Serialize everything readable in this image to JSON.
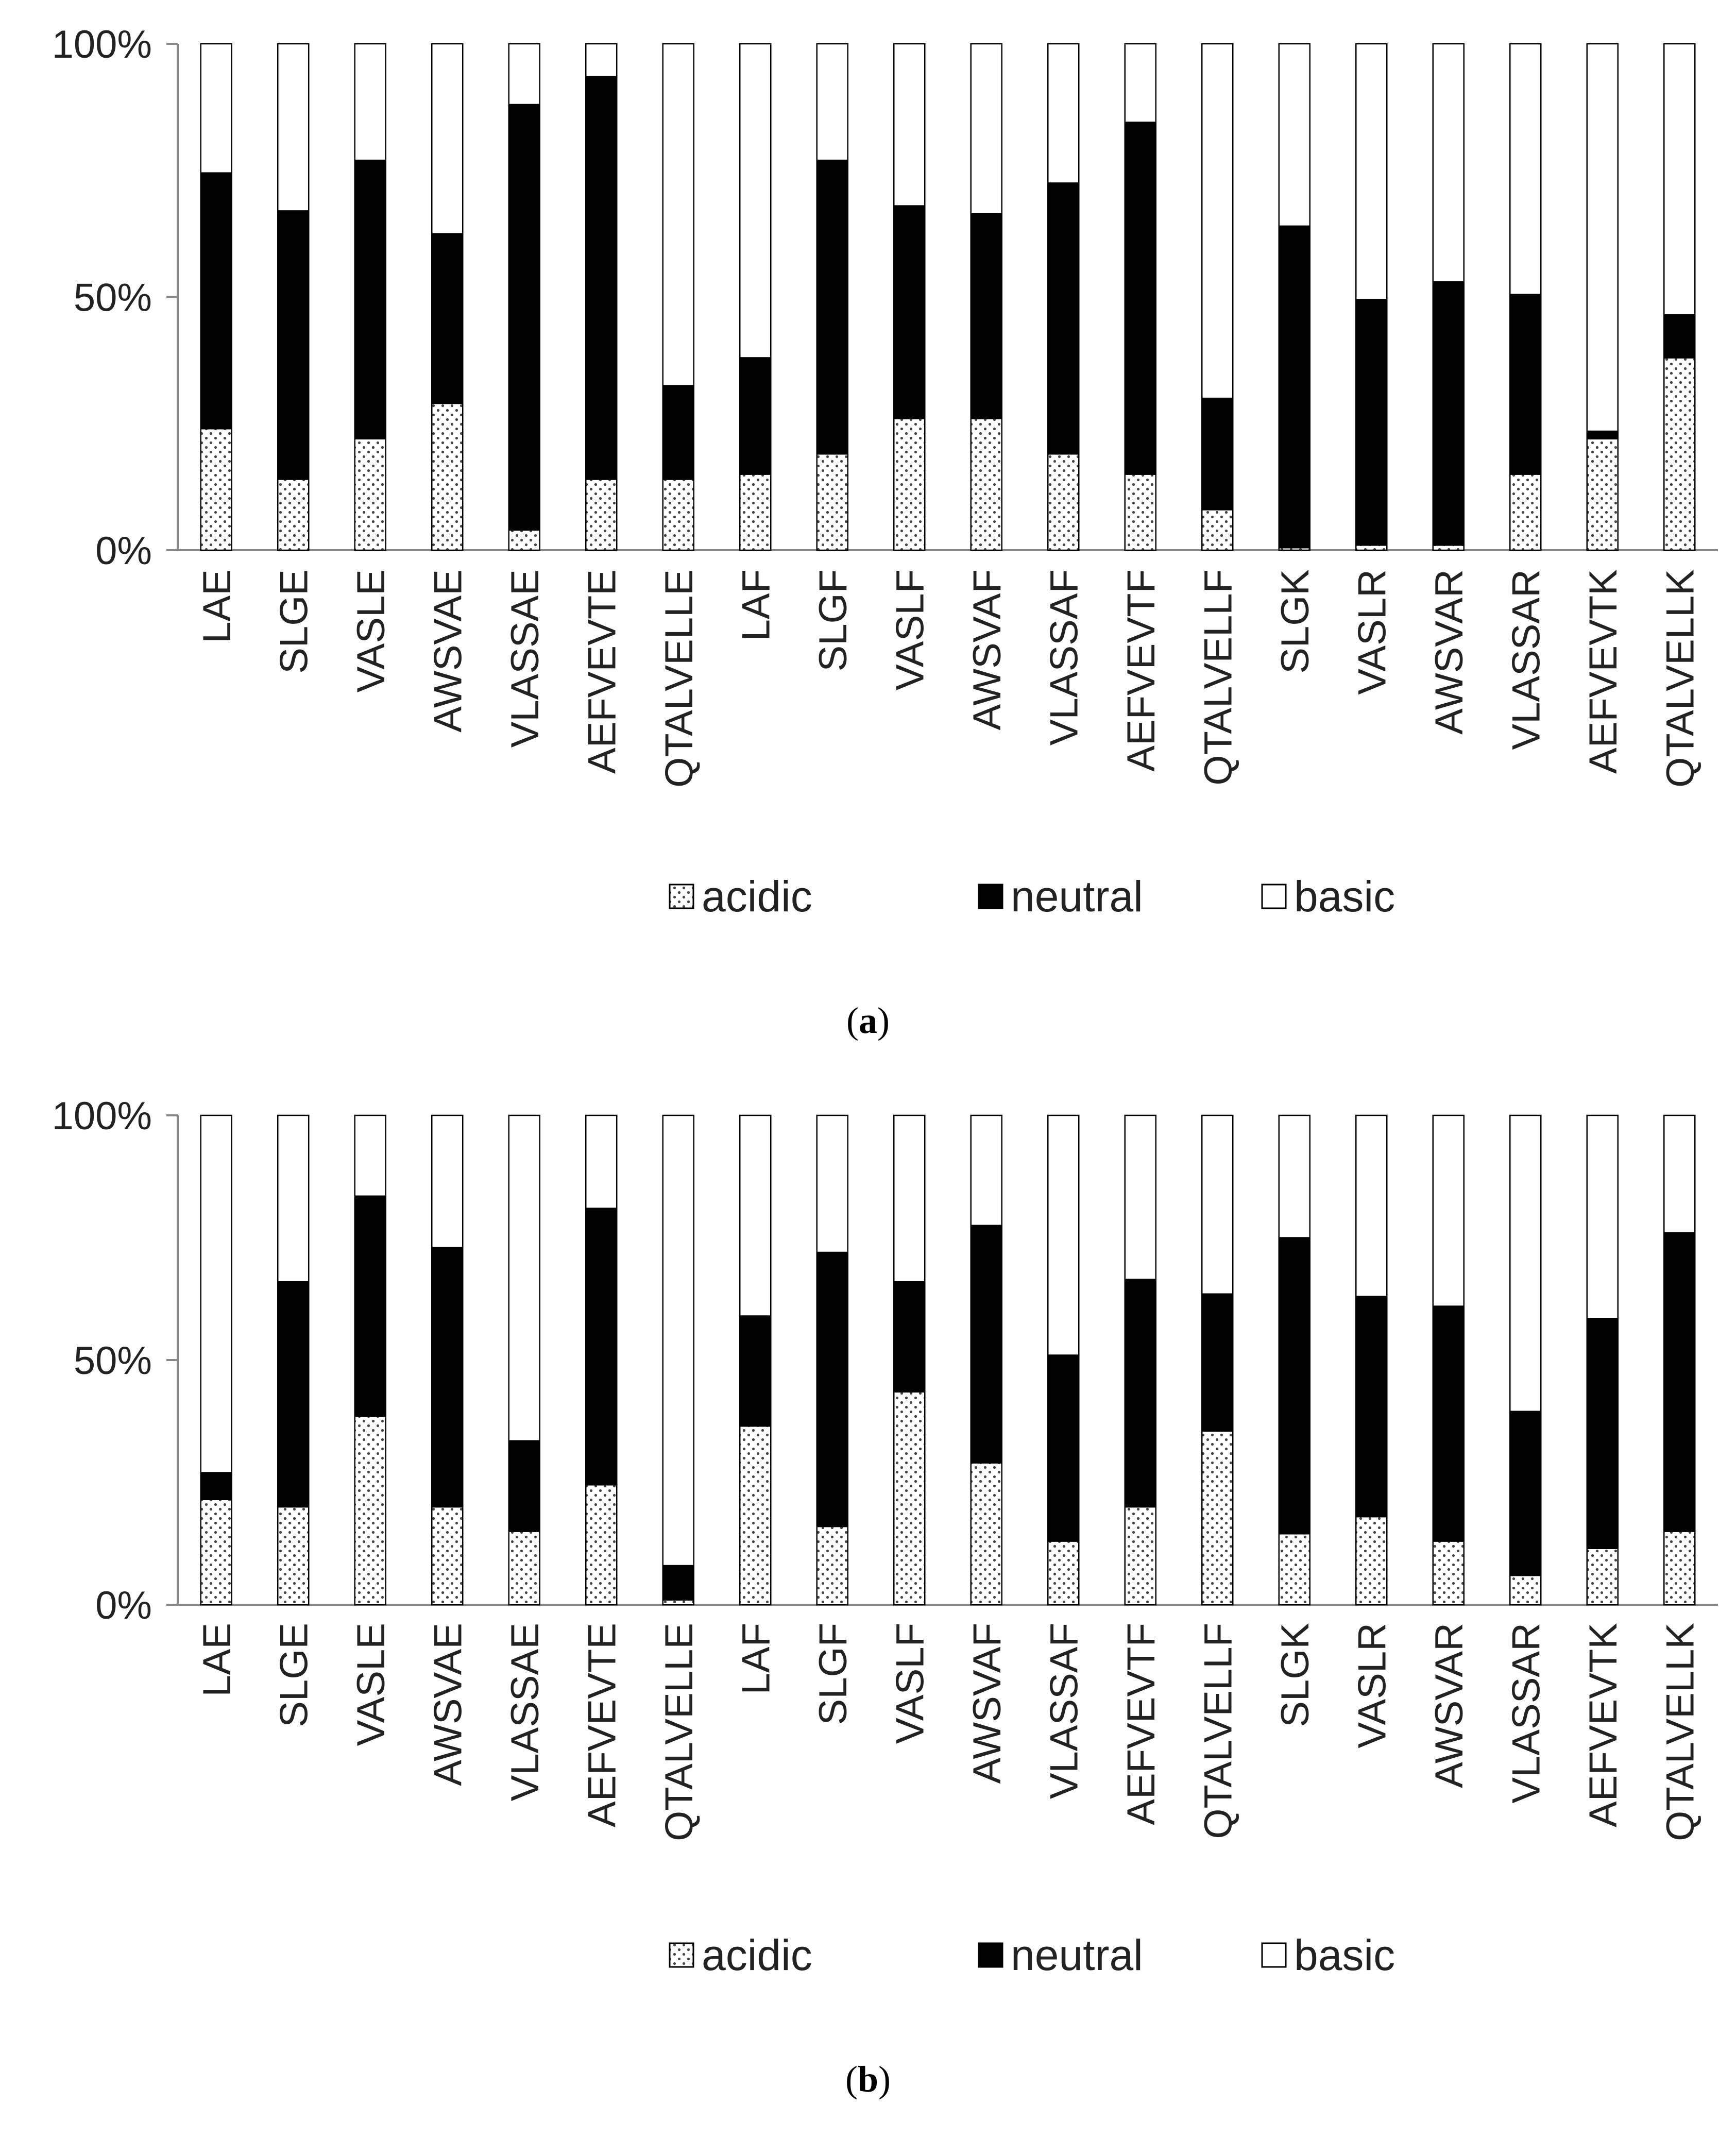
{
  "chart_data": [
    {
      "type": "bar",
      "stacked": true,
      "caption": "(a)",
      "categories": [
        "LAE",
        "SLGE",
        "VASLE",
        "AWSVAE",
        "VLASSAE",
        "AEFVEVTE",
        "QTALVELLE",
        "LAF",
        "SLGF",
        "VASLF",
        "AWSVAF",
        "VLASSAF",
        "AEFVEVTF",
        "QTALVELLF",
        "SLGK",
        "VASLR",
        "AWSVAR",
        "VLASSAR",
        "AEFVEVTK",
        "QTALVELLK"
      ],
      "series": [
        {
          "name": "acidic",
          "values": [
            24,
            14,
            22,
            29,
            4,
            14,
            14,
            15,
            19,
            26,
            26,
            19,
            15,
            8,
            0.5,
            1,
            1,
            15,
            22,
            38
          ]
        },
        {
          "name": "neutral",
          "values": [
            50.5,
            53,
            55,
            33.5,
            84,
            79.5,
            18.5,
            23,
            58,
            42,
            40.5,
            53.5,
            69.5,
            22,
            63.5,
            48.5,
            52,
            35.5,
            1.5,
            8.5
          ]
        },
        {
          "name": "basic",
          "values": [
            25.5,
            33,
            23,
            37.5,
            12,
            6.5,
            67.5,
            62,
            23,
            32,
            33.5,
            27.5,
            15.5,
            70,
            36,
            50.5,
            47,
            49.5,
            76.5,
            53.5
          ]
        }
      ],
      "ylim": [
        0,
        100
      ],
      "yticks": [
        "0%",
        "50%",
        "100%"
      ],
      "legend": "bottom"
    },
    {
      "type": "bar",
      "stacked": true,
      "caption": "(b)",
      "categories": [
        "LAE",
        "SLGE",
        "VASLE",
        "AWSVAE",
        "VLASSAE",
        "AEFVEVTE",
        "QTALVELLE",
        "LAF",
        "SLGF",
        "VASLF",
        "AWSVAF",
        "VLASSAF",
        "AEFVEVTF",
        "QTALVELLF",
        "SLGK",
        "VASLR",
        "AWSVAR",
        "VLASSAR",
        "AEFVEVTK",
        "QTALVELLK"
      ],
      "series": [
        {
          "name": "acidic",
          "values": [
            21.5,
            20,
            38.5,
            20,
            15,
            24.5,
            1,
            36.5,
            16,
            43.5,
            29,
            13,
            20,
            35.5,
            14.5,
            18,
            13,
            6,
            11.5,
            15
          ]
        },
        {
          "name": "neutral",
          "values": [
            5.5,
            46,
            45,
            53,
            18.5,
            56.5,
            7,
            22.5,
            56,
            22.5,
            48.5,
            38,
            46.5,
            28,
            60.5,
            45,
            48,
            33.5,
            47,
            61
          ]
        },
        {
          "name": "basic",
          "values": [
            73,
            34,
            16.5,
            27,
            66.5,
            19,
            92,
            41,
            28,
            34,
            22.5,
            49,
            33.5,
            36.5,
            25,
            37,
            39,
            60.5,
            41.5,
            24
          ]
        }
      ],
      "ylim": [
        0,
        100
      ],
      "yticks": [
        "0%",
        "50%",
        "100%"
      ],
      "legend": "bottom"
    }
  ]
}
